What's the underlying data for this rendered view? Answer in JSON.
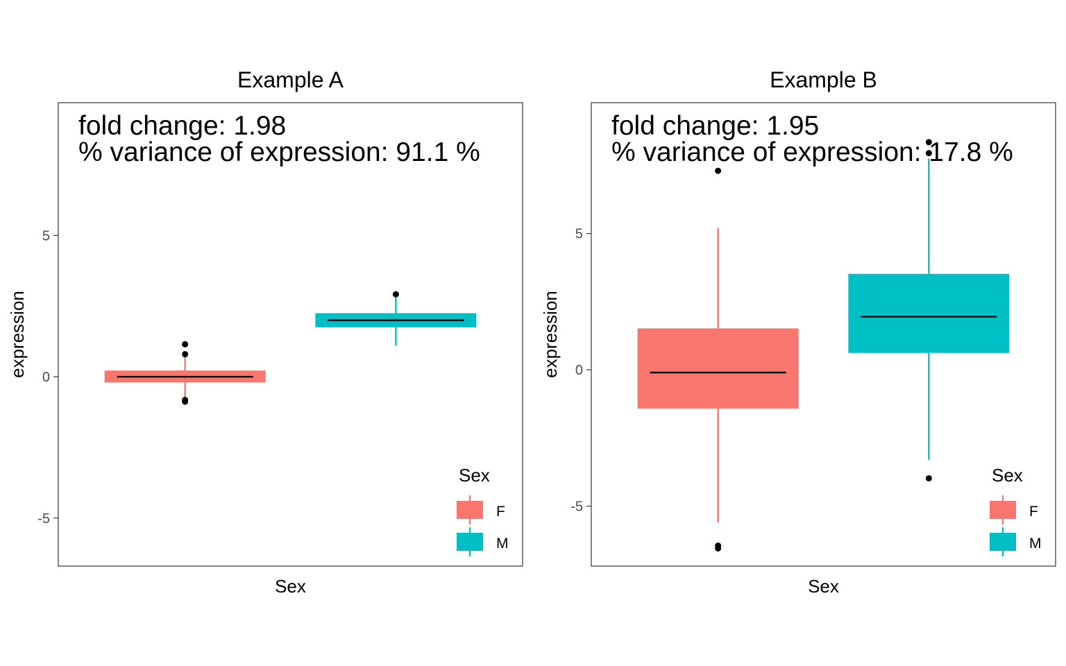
{
  "chart_data": [
    {
      "type": "box",
      "title": "Example A",
      "xlabel": "Sex",
      "ylabel": "expression",
      "ylim": [
        -6.7,
        9.7
      ],
      "yticks": [
        5,
        0,
        -5
      ],
      "ytick_labels": [
        "5",
        "0",
        "-5"
      ],
      "annotation": [
        "fold change: 1.98",
        "% variance of expression: 91.1 %"
      ],
      "legend_title": "Sex",
      "legend_position": "bottom-right",
      "series": [
        {
          "name": "F",
          "color": "#F8766D",
          "q1": -0.2,
          "median": 0.0,
          "q3": 0.22,
          "whisker_low": -0.8,
          "whisker_high": 0.7,
          "outliers": [
            1.15,
            0.8,
            -0.82,
            -0.88
          ]
        },
        {
          "name": "M",
          "color": "#00BFC4",
          "q1": 1.75,
          "median": 2.0,
          "q3": 2.25,
          "whisker_low": 1.1,
          "whisker_high": 2.9,
          "outliers": [
            2.92
          ]
        }
      ]
    },
    {
      "type": "box",
      "title": "Example B",
      "xlabel": "Sex",
      "ylabel": "expression",
      "ylim": [
        -7.2,
        9.8
      ],
      "yticks": [
        5,
        0,
        -5
      ],
      "ytick_labels": [
        "5",
        "0",
        "-5"
      ],
      "annotation": [
        "fold change: 1.95",
        "% variance of expression: 17.8 %"
      ],
      "legend_title": "Sex",
      "legend_position": "bottom-right",
      "series": [
        {
          "name": "F",
          "color": "#F8766D",
          "q1": -1.42,
          "median": -0.1,
          "q3": 1.52,
          "whisker_low": -5.6,
          "whisker_high": 5.2,
          "outliers": [
            7.3,
            -6.45,
            -6.55
          ]
        },
        {
          "name": "M",
          "color": "#00BFC4",
          "q1": 0.62,
          "median": 1.95,
          "q3": 3.52,
          "whisker_low": -3.3,
          "whisker_high": 7.75,
          "outliers": [
            8.35,
            7.95,
            -3.98
          ]
        }
      ]
    }
  ]
}
